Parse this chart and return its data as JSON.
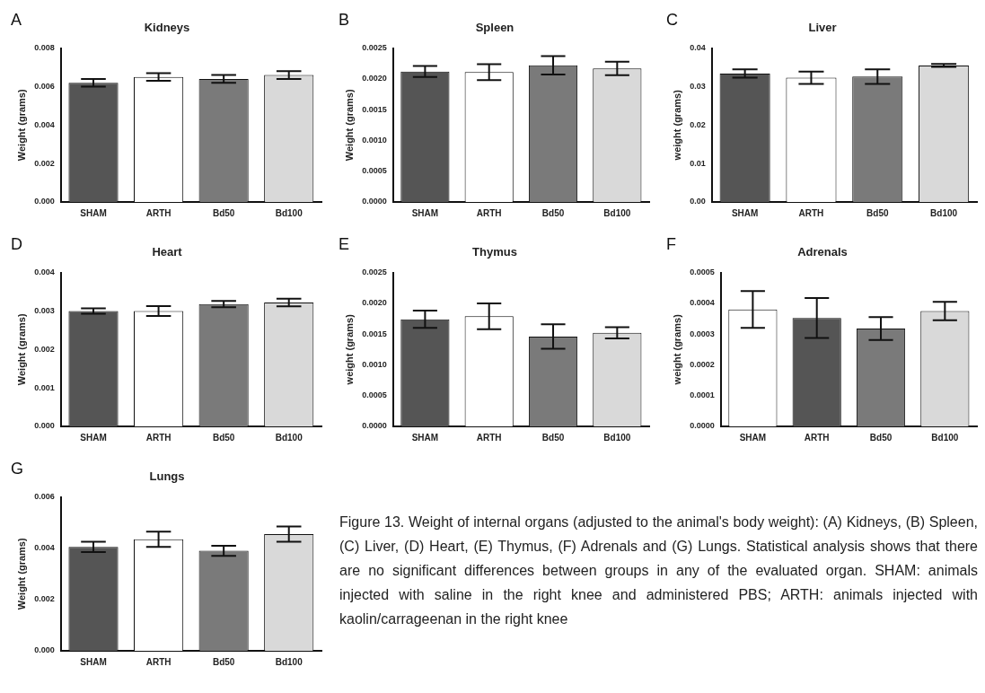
{
  "chart_data": [
    {
      "type": "bar",
      "title": "Kidneys",
      "ylabel": "Weight (grams)",
      "annotations": [
        "A"
      ],
      "categories": [
        "SHAM",
        "ARTH",
        "Bd50",
        "Bd100"
      ],
      "values": [
        0.0062,
        0.0065,
        0.0064,
        0.0066
      ],
      "errors": [
        0.0002,
        0.0002,
        0.0002,
        0.0002
      ],
      "colors": [
        "#555555",
        "#ffffff",
        "#7a7a7a",
        "#d9d9d9"
      ],
      "ylim": [
        0,
        0.008
      ],
      "yticks": [
        {
          "value": 0,
          "label": "0.000"
        },
        {
          "value": 0.002,
          "label": "0.002"
        },
        {
          "value": 0.004,
          "label": "0.004"
        },
        {
          "value": 0.006,
          "label": "0.006"
        },
        {
          "value": 0.008,
          "label": "0.008"
        }
      ],
      "grid": false
    },
    {
      "type": "bar",
      "title": "Spleen",
      "ylabel": "Weight (grams)",
      "annotations": [
        "B"
      ],
      "categories": [
        "SHAM",
        "ARTH",
        "Bd50",
        "Bd100"
      ],
      "values": [
        0.00212,
        0.00211,
        0.00222,
        0.00217
      ],
      "errors": [
        9e-05,
        0.00013,
        0.00015,
        0.00011
      ],
      "colors": [
        "#555555",
        "#ffffff",
        "#7a7a7a",
        "#d9d9d9"
      ],
      "ylim": [
        0,
        0.0025
      ],
      "yticks": [
        {
          "value": 0,
          "label": "0.0000"
        },
        {
          "value": 0.0005,
          "label": "0.0005"
        },
        {
          "value": 0.001,
          "label": "0.0010"
        },
        {
          "value": 0.0015,
          "label": "0.0015"
        },
        {
          "value": 0.002,
          "label": "0.0020"
        },
        {
          "value": 0.0025,
          "label": "0.0025"
        }
      ],
      "grid": false
    },
    {
      "type": "bar",
      "title": "Liver",
      "ylabel": "weight (grams)",
      "annotations": [
        "C"
      ],
      "categories": [
        "SHAM",
        "ARTH",
        "Bd50",
        "Bd100"
      ],
      "values": [
        0.0334,
        0.0323,
        0.0326,
        0.0355
      ],
      "errors": [
        0.0011,
        0.0016,
        0.0019,
        0.0004
      ],
      "colors": [
        "#555555",
        "#ffffff",
        "#7a7a7a",
        "#d9d9d9"
      ],
      "ylim": [
        0,
        0.04
      ],
      "yticks": [
        {
          "value": 0,
          "label": "0.00"
        },
        {
          "value": 0.01,
          "label": "0.01"
        },
        {
          "value": 0.02,
          "label": "0.02"
        },
        {
          "value": 0.03,
          "label": "0.03"
        },
        {
          "value": 0.04,
          "label": "0.04"
        }
      ],
      "grid": false
    },
    {
      "type": "bar",
      "title": "Heart",
      "ylabel": "Weight (grams)",
      "annotations": [
        "D"
      ],
      "categories": [
        "SHAM",
        "ARTH",
        "Bd50",
        "Bd100"
      ],
      "values": [
        0.003,
        0.003,
        0.00318,
        0.00322
      ],
      "errors": [
        7e-05,
        0.00013,
        8e-05,
        0.0001
      ],
      "colors": [
        "#555555",
        "#ffffff",
        "#7a7a7a",
        "#d9d9d9"
      ],
      "ylim": [
        0,
        0.004
      ],
      "yticks": [
        {
          "value": 0,
          "label": "0.000"
        },
        {
          "value": 0.001,
          "label": "0.001"
        },
        {
          "value": 0.002,
          "label": "0.002"
        },
        {
          "value": 0.003,
          "label": "0.003"
        },
        {
          "value": 0.004,
          "label": "0.004"
        }
      ],
      "grid": false
    },
    {
      "type": "bar",
      "title": "Thymus",
      "ylabel": "weight (grams)",
      "annotations": [
        "E"
      ],
      "categories": [
        "SHAM",
        "ARTH",
        "Bd50",
        "Bd100"
      ],
      "values": [
        0.00174,
        0.00179,
        0.00146,
        0.00152
      ],
      "errors": [
        0.00014,
        0.00021,
        0.0002,
        9e-05
      ],
      "colors": [
        "#555555",
        "#ffffff",
        "#7a7a7a",
        "#d9d9d9"
      ],
      "ylim": [
        0,
        0.0025
      ],
      "yticks": [
        {
          "value": 0,
          "label": "0.0000"
        },
        {
          "value": 0.0005,
          "label": "0.0005"
        },
        {
          "value": 0.001,
          "label": "0.0010"
        },
        {
          "value": 0.0015,
          "label": "0.0015"
        },
        {
          "value": 0.002,
          "label": "0.0020"
        },
        {
          "value": 0.0025,
          "label": "0.0025"
        }
      ],
      "grid": false
    },
    {
      "type": "bar",
      "title": "Adrenals",
      "ylabel": "weight (grams)",
      "annotations": [
        "F"
      ],
      "categories": [
        "SHAM",
        "ARTH",
        "Bd50",
        "Bd100"
      ],
      "values": [
        0.00038,
        0.000352,
        0.000318,
        0.000375
      ],
      "errors": [
        6e-05,
        6.5e-05,
        3.7e-05,
        3e-05
      ],
      "colors": [
        "#ffffff",
        "#555555",
        "#7a7a7a",
        "#d9d9d9"
      ],
      "ylim": [
        0,
        0.0005
      ],
      "yticks": [
        {
          "value": 0,
          "label": "0.0000"
        },
        {
          "value": 0.0001,
          "label": "0.0001"
        },
        {
          "value": 0.0002,
          "label": "0.0002"
        },
        {
          "value": 0.0003,
          "label": "0.0003"
        },
        {
          "value": 0.0004,
          "label": "0.0004"
        },
        {
          "value": 0.0005,
          "label": "0.0005"
        }
      ],
      "grid": false
    },
    {
      "type": "bar",
      "title": "Lungs",
      "ylabel": "Weight (grams)",
      "annotations": [
        "G",
        "Figure 13. Weight of internal organs (adjusted to the animal's body weight):  (A) Kidneys, (B) Spleen, (C) Liver, (D) Heart, (E) Thymus, (F) Adrenals and (G) Lungs. Statistical analysis shows that there are no significant differences between groups in any of the evaluated organ. SHAM: animals injected with saline in the right knee and administered PBS; ARTH: animals injected with kaolin/carrageenan in the right knee"
      ],
      "categories": [
        "SHAM",
        "ARTH",
        "Bd50",
        "Bd100"
      ],
      "values": [
        0.00405,
        0.00435,
        0.0039,
        0.00455
      ],
      "errors": [
        0.0002,
        0.0003,
        0.0002,
        0.0003
      ],
      "colors": [
        "#555555",
        "#ffffff",
        "#7a7a7a",
        "#d9d9d9"
      ],
      "ylim": [
        0,
        0.006
      ],
      "yticks": [
        {
          "value": 0,
          "label": "0.000"
        },
        {
          "value": 0.002,
          "label": "0.002"
        },
        {
          "value": 0.004,
          "label": "0.004"
        },
        {
          "value": 0.006,
          "label": "0.006"
        }
      ],
      "grid": false
    }
  ]
}
